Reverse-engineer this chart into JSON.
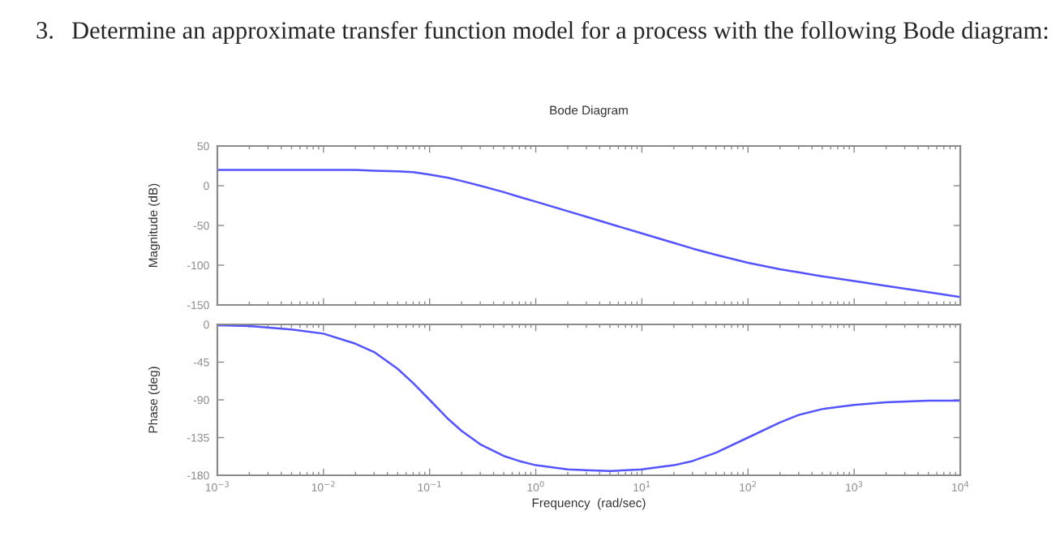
{
  "chart_data": [
    {
      "type": "line",
      "title": "Bode Diagram",
      "ylabel": "Magnitude (dB)",
      "annotations": [
        "3.",
        "Determine an approximate transfer function model for a process with the following Bode diagram:"
      ],
      "x": [
        0.001,
        0.002,
        0.005,
        0.01,
        0.02,
        0.03,
        0.05,
        0.07,
        0.1,
        0.15,
        0.2,
        0.3,
        0.5,
        0.7,
        1,
        2,
        3,
        5,
        10,
        20,
        30,
        50,
        100,
        200,
        300,
        500,
        1000,
        2000,
        5000,
        10000
      ],
      "series": [
        {
          "color": "#5353ff",
          "values": [
            20,
            20,
            20,
            20,
            20,
            19,
            18,
            17,
            14,
            10,
            6,
            0,
            -8,
            -14,
            -20,
            -32,
            -39,
            -48,
            -60,
            -72,
            -79,
            -87,
            -97,
            -105,
            -109,
            -114,
            -120,
            -126,
            -134,
            -140
          ]
        }
      ],
      "log": "x",
      "xlim": [
        0.001,
        10000
      ],
      "xticks": [
        {
          "value": 0.001,
          "label": null
        },
        {
          "value": 0.01,
          "label": null
        },
        {
          "value": 0.1,
          "label": null
        },
        {
          "value": 1,
          "label": null
        },
        {
          "value": 10,
          "label": null
        },
        {
          "value": 100,
          "label": null
        },
        {
          "value": 1000,
          "label": null
        },
        {
          "value": 10000,
          "label": null
        }
      ],
      "ylim": [
        -150,
        50
      ],
      "yticks": [
        -150,
        -100,
        -50,
        0,
        50
      ],
      "tick_labels": "y",
      "grid": false,
      "legend": false
    },
    {
      "type": "line",
      "xlabel": "Frequency  (rad/sec)",
      "ylabel": "Phase (deg)",
      "x": [
        0.001,
        0.002,
        0.005,
        0.01,
        0.02,
        0.03,
        0.05,
        0.07,
        0.1,
        0.15,
        0.2,
        0.3,
        0.5,
        0.7,
        1,
        2,
        3,
        5,
        10,
        20,
        30,
        50,
        100,
        200,
        300,
        500,
        1000,
        2000,
        5000,
        10000
      ],
      "series": [
        {
          "color": "#5353ff",
          "values": [
            -1,
            -2,
            -6,
            -11,
            -23,
            -33,
            -53,
            -70,
            -90,
            -113,
            -127,
            -143,
            -157,
            -163,
            -168,
            -173,
            -174,
            -175,
            -173,
            -168,
            -163,
            -153,
            -135,
            -117,
            -108,
            -101,
            -96,
            -93,
            -91,
            -91
          ]
        }
      ],
      "log": "x",
      "xlim": [
        0.001,
        10000
      ],
      "xticks": [
        {
          "value": 0.001,
          "label": "10$^{−3}$"
        },
        {
          "value": 0.01,
          "label": "10$^{−2}$"
        },
        {
          "value": 0.1,
          "label": "10$^{−1}$"
        },
        {
          "value": 1,
          "label": "10$^{0}$"
        },
        {
          "value": 10,
          "label": "10$^{1}$"
        },
        {
          "value": 100,
          "label": "10$^{2}$"
        },
        {
          "value": 1000,
          "label": "10$^{3}$"
        },
        {
          "value": 10000,
          "label": "10$^{4}$"
        }
      ],
      "ylim": [
        -180,
        0
      ],
      "yticks": [
        -180,
        -135,
        -90,
        -45,
        0
      ],
      "grid": false,
      "legend": false
    }
  ]
}
